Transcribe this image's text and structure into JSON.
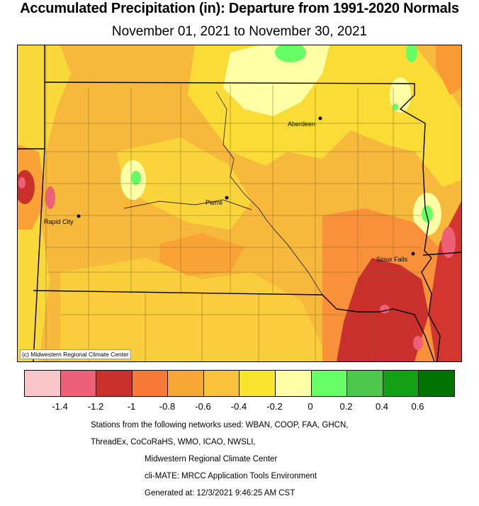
{
  "title": "Accumulated Precipitation (in): Departure from 1991-2020 Normals",
  "subtitle": "November 01, 2021 to November 30, 2021",
  "credit": "(c) Midwestern Regional Climate Center",
  "cities": [
    {
      "name": "Aberdeen"
    },
    {
      "name": "Pierre"
    },
    {
      "name": "Rapid City"
    },
    {
      "name": "Sioux Falls"
    }
  ],
  "legend": {
    "colors": [
      "#f9c6c9",
      "#ee6078",
      "#c9302c",
      "#f97a38",
      "#f7a733",
      "#f9c13c",
      "#f9e42e",
      "#ffffa6",
      "#66ff66",
      "#4cc94c",
      "#13a013",
      "#007400"
    ],
    "tick_labels": [
      "-1.4",
      "-1.2",
      "-1",
      "-0.8",
      "-0.6",
      "-0.4",
      "-0.2",
      "0",
      "0.2",
      "0.4",
      "0.6"
    ]
  },
  "footer": {
    "line1": "Stations from the following networks used: WBAN, COOP, FAA, GHCN,",
    "line2": "ThreadEx, CoCoRaHS, WMO, ICAO, NWSLI,",
    "line3": "Midwestern Regional Climate Center",
    "line4": "cli-MATE: MRCC Application Tools Environment",
    "line5": "Generated at: 12/3/2021 9:46:25 AM CST"
  }
}
